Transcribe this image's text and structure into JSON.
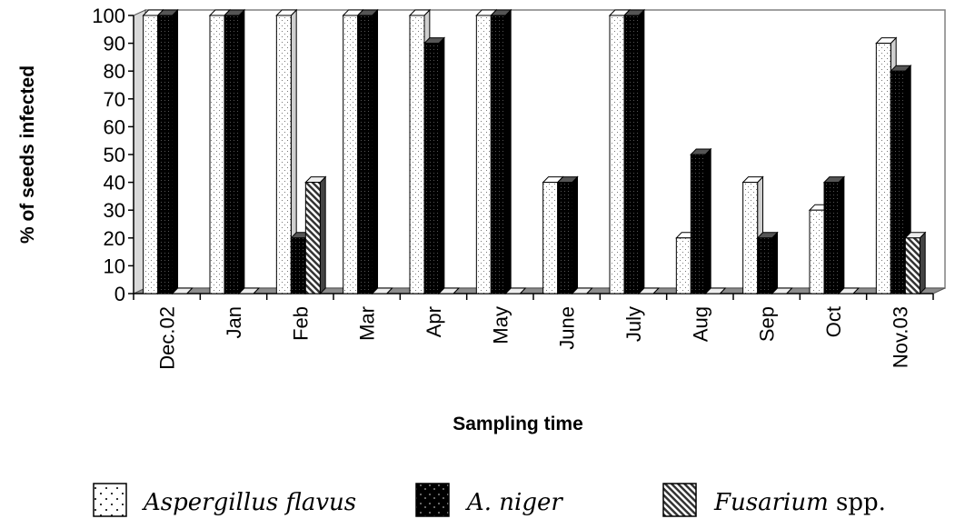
{
  "chart_data": {
    "type": "bar",
    "title": "",
    "xlabel": "Sampling time",
    "ylabel": "% of seeds infected",
    "ylim": [
      0,
      100
    ],
    "yticks": [
      "0",
      "10",
      "20",
      "30",
      "40",
      "50",
      "60",
      "70",
      "80",
      "90",
      "100"
    ],
    "categories": [
      "Dec.02",
      "Jan",
      "Feb",
      "Mar",
      "Apr",
      "May",
      "June",
      "July",
      "Aug",
      "Sep",
      "Oct",
      "Nov.03"
    ],
    "series": [
      {
        "name": "Aspergillus flavus",
        "values": [
          100,
          100,
          100,
          100,
          100,
          100,
          40,
          100,
          20,
          40,
          30,
          90
        ],
        "color": "#ffffff"
      },
      {
        "name": "A. niger",
        "values": [
          100,
          100,
          20,
          100,
          90,
          100,
          40,
          100,
          50,
          20,
          40,
          80
        ],
        "color": "#111111"
      },
      {
        "name": "Fusarium spp.",
        "values": [
          0,
          0,
          40,
          0,
          0,
          0,
          0,
          0,
          0,
          0,
          0,
          20
        ],
        "color": "#bbbbbb"
      }
    ],
    "grid": false,
    "legend_position": "bottom"
  },
  "legend": [
    {
      "italic": "Aspergillus flavus",
      "plain": ""
    },
    {
      "italic": "A. niger",
      "plain": ""
    },
    {
      "italic": "Fusarium",
      "plain": " spp."
    }
  ]
}
